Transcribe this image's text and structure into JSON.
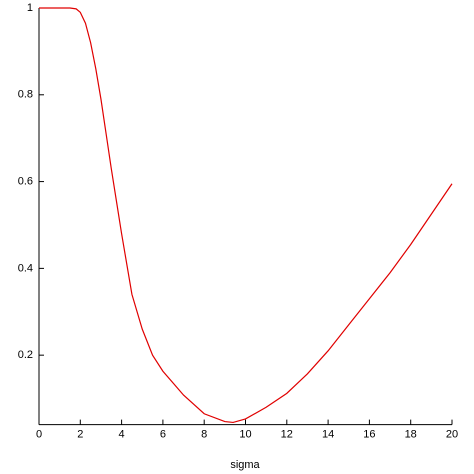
{
  "chart_data": {
    "type": "line",
    "x_label": "sigma",
    "x": [
      0,
      1,
      1.5,
      1.8,
      2,
      2.25,
      2.5,
      2.75,
      3,
      3.25,
      3.5,
      3.75,
      4,
      4.5,
      5,
      5.5,
      6,
      7,
      8,
      9,
      9.4,
      10,
      11,
      12,
      13,
      14,
      15,
      16,
      17,
      18,
      19,
      20
    ],
    "series": [
      {
        "name": "curve",
        "color": "#e00000",
        "values": [
          1,
          1,
          1,
          0.998,
          0.99,
          0.965,
          0.92,
          0.86,
          0.79,
          0.71,
          0.63,
          0.555,
          0.48,
          0.34,
          0.26,
          0.2,
          0.163,
          0.108,
          0.065,
          0.047,
          0.045,
          0.053,
          0.08,
          0.112,
          0.157,
          0.21,
          0.27,
          0.33,
          0.39,
          0.455,
          0.525,
          0.595
        ]
      }
    ],
    "xlim": [
      0,
      20
    ],
    "ylim": [
      0.04,
      1
    ],
    "xticks": [
      0,
      2,
      4,
      6,
      8,
      10,
      12,
      14,
      16,
      18,
      20
    ],
    "yticks": [
      0.2,
      0.4,
      0.6,
      0.8,
      1
    ]
  }
}
